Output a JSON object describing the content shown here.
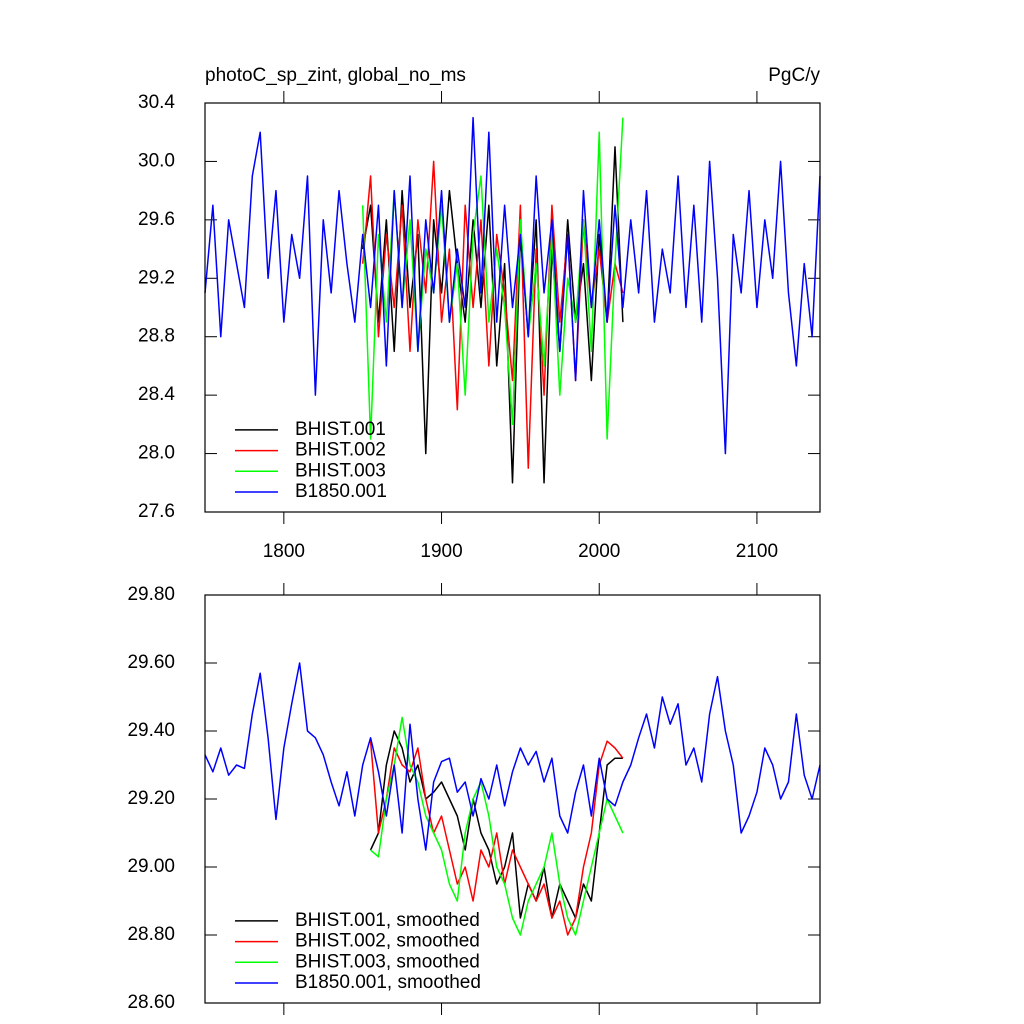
{
  "chart_data": [
    {
      "type": "line",
      "title": "photoC_sp_zint, global_no_ms",
      "units": "PgC/y",
      "xlim": [
        1750,
        2140
      ],
      "xticks": [
        1800,
        1900,
        2000,
        2100
      ],
      "xtick_labels": true,
      "ylim": [
        27.6,
        30.4
      ],
      "yticks": [
        27.6,
        {
          "value": 28,
          "label": "28.0"
        },
        28.4,
        28.8,
        29.2,
        29.6,
        {
          "value": 30,
          "label": "30.0"
        },
        30.4
      ],
      "legend": "lower left",
      "series": [
        {
          "name": "BHIST.001",
          "color": "#000000",
          "x": [
            1850,
            1855,
            1860,
            1865,
            1870,
            1875,
            1880,
            1885,
            1890,
            1895,
            1900,
            1905,
            1910,
            1915,
            1920,
            1925,
            1930,
            1935,
            1940,
            1945,
            1950,
            1955,
            1960,
            1965,
            1970,
            1975,
            1980,
            1985,
            1990,
            1995,
            2000,
            2005,
            2010,
            2015
          ],
          "values": [
            29.4,
            29.7,
            28.9,
            29.6,
            28.7,
            29.8,
            29.0,
            29.5,
            28.0,
            29.6,
            29.1,
            29.8,
            29.3,
            28.9,
            29.6,
            29.0,
            29.7,
            28.6,
            29.3,
            27.8,
            29.5,
            28.8,
            29.6,
            27.8,
            29.4,
            28.7,
            29.6,
            28.9,
            29.3,
            28.5,
            29.5,
            28.9,
            30.1,
            28.9
          ]
        },
        {
          "name": "BHIST.002",
          "color": "#ff0000",
          "x": [
            1850,
            1855,
            1860,
            1865,
            1870,
            1875,
            1880,
            1885,
            1890,
            1895,
            1900,
            1905,
            1910,
            1915,
            1920,
            1925,
            1930,
            1935,
            1940,
            1945,
            1950,
            1955,
            1960,
            1965,
            1970,
            1975,
            1980,
            1985,
            1990,
            1995,
            2000,
            2005,
            2010,
            2015
          ],
          "values": [
            29.3,
            29.9,
            28.8,
            29.5,
            29.0,
            29.7,
            28.7,
            29.6,
            29.1,
            30.0,
            28.9,
            29.4,
            28.3,
            29.7,
            29.0,
            29.6,
            28.6,
            29.5,
            29.1,
            28.5,
            29.7,
            27.9,
            29.4,
            28.4,
            29.7,
            28.9,
            29.5,
            28.5,
            29.6,
            29.0,
            29.4,
            28.9,
            29.3,
            29.1
          ]
        },
        {
          "name": "BHIST.003",
          "color": "#00ff00",
          "x": [
            1850,
            1855,
            1860,
            1865,
            1870,
            1875,
            1880,
            1885,
            1890,
            1895,
            1900,
            1905,
            1910,
            1915,
            1920,
            1925,
            1930,
            1935,
            1940,
            1945,
            1950,
            1955,
            1960,
            1965,
            1970,
            1975,
            1980,
            1985,
            1990,
            1995,
            2000,
            2005,
            2010,
            2015
          ],
          "values": [
            29.7,
            28.1,
            29.5,
            28.9,
            29.8,
            29.0,
            29.6,
            28.7,
            29.4,
            29.1,
            29.7,
            28.9,
            29.3,
            28.4,
            29.5,
            29.9,
            28.9,
            29.4,
            29.0,
            28.2,
            29.6,
            28.8,
            29.3,
            28.6,
            29.5,
            28.4,
            29.2,
            28.9,
            29.6,
            28.7,
            30.2,
            28.1,
            29.3,
            30.3
          ]
        },
        {
          "name": "B1850.001",
          "color": "#0000ff",
          "x": [
            1750,
            1755,
            1760,
            1765,
            1770,
            1775,
            1780,
            1785,
            1790,
            1795,
            1800,
            1805,
            1810,
            1815,
            1820,
            1825,
            1830,
            1835,
            1840,
            1845,
            1850,
            1855,
            1860,
            1865,
            1870,
            1875,
            1880,
            1885,
            1890,
            1895,
            1900,
            1905,
            1910,
            1915,
            1920,
            1925,
            1930,
            1935,
            1940,
            1945,
            1950,
            1955,
            1960,
            1965,
            1970,
            1975,
            1980,
            1985,
            1990,
            1995,
            2000,
            2005,
            2010,
            2015,
            2020,
            2025,
            2030,
            2035,
            2040,
            2045,
            2050,
            2055,
            2060,
            2065,
            2070,
            2075,
            2080,
            2085,
            2090,
            2095,
            2100,
            2105,
            2110,
            2115,
            2120,
            2125,
            2130,
            2135,
            2140
          ],
          "values": [
            29.1,
            29.7,
            28.8,
            29.6,
            29.3,
            29.0,
            29.9,
            30.2,
            29.2,
            29.8,
            28.9,
            29.5,
            29.2,
            29.9,
            28.4,
            29.6,
            29.1,
            29.8,
            29.3,
            28.9,
            29.5,
            29.0,
            29.7,
            28.6,
            29.8,
            29.0,
            29.9,
            28.7,
            29.6,
            29.1,
            29.8,
            28.9,
            29.4,
            29.0,
            30.3,
            29.1,
            30.2,
            28.9,
            29.7,
            29.0,
            29.5,
            28.8,
            29.9,
            29.1,
            29.6,
            28.7,
            29.5,
            28.5,
            29.8,
            29.0,
            29.6,
            28.9,
            29.7,
            29.0,
            29.6,
            29.1,
            29.8,
            28.9,
            29.4,
            29.1,
            29.9,
            29.0,
            29.7,
            28.9,
            30.0,
            29.2,
            28.0,
            29.5,
            29.1,
            29.8,
            29.0,
            29.6,
            29.2,
            30.0,
            29.1,
            28.6,
            29.3,
            28.8,
            29.9
          ]
        }
      ]
    },
    {
      "type": "line",
      "xlim": [
        1750,
        2140
      ],
      "xticks": [
        1800,
        1900,
        2000,
        2100
      ],
      "xtick_labels": false,
      "ylim": [
        28.6,
        29.8
      ],
      "yticks": [
        {
          "value": 28.6,
          "label": "28.60"
        },
        {
          "value": 28.8,
          "label": "28.80"
        },
        {
          "value": 29,
          "label": "29.00"
        },
        {
          "value": 29.2,
          "label": "29.20"
        },
        {
          "value": 29.4,
          "label": "29.40"
        },
        {
          "value": 29.6,
          "label": "29.60"
        },
        {
          "value": 29.8,
          "label": "29.80"
        }
      ],
      "legend": "lower left",
      "series": [
        {
          "name": "BHIST.001, smoothed",
          "color": "#000000",
          "x": [
            1855,
            1860,
            1865,
            1870,
            1875,
            1880,
            1885,
            1890,
            1895,
            1900,
            1905,
            1910,
            1915,
            1920,
            1925,
            1930,
            1935,
            1940,
            1945,
            1950,
            1955,
            1960,
            1965,
            1970,
            1975,
            1980,
            1985,
            1990,
            1995,
            2000,
            2005,
            2010,
            2015
          ],
          "values": [
            29.05,
            29.1,
            29.3,
            29.4,
            29.35,
            29.25,
            29.3,
            29.2,
            29.22,
            29.25,
            29.2,
            29.15,
            29.05,
            29.2,
            29.1,
            29.05,
            28.95,
            29.0,
            29.1,
            28.85,
            28.95,
            28.9,
            29.0,
            28.85,
            28.95,
            28.9,
            28.85,
            28.95,
            28.9,
            29.1,
            29.3,
            29.32,
            29.32
          ]
        },
        {
          "name": "BHIST.002, smoothed",
          "color": "#ff0000",
          "x": [
            1855,
            1860,
            1865,
            1870,
            1875,
            1880,
            1885,
            1890,
            1895,
            1900,
            1905,
            1910,
            1915,
            1920,
            1925,
            1930,
            1935,
            1940,
            1945,
            1950,
            1955,
            1960,
            1965,
            1970,
            1975,
            1980,
            1985,
            1990,
            1995,
            2000,
            2005,
            2010,
            2015
          ],
          "values": [
            29.37,
            29.1,
            29.2,
            29.35,
            29.3,
            29.28,
            29.35,
            29.2,
            29.1,
            29.15,
            29.05,
            28.95,
            29.0,
            28.9,
            29.05,
            29.0,
            29.1,
            28.95,
            29.05,
            29.0,
            28.95,
            28.9,
            28.95,
            28.85,
            28.9,
            28.8,
            28.85,
            29.0,
            29.1,
            29.3,
            29.37,
            29.35,
            29.32
          ]
        },
        {
          "name": "BHIST.003, smoothed",
          "color": "#00ff00",
          "x": [
            1855,
            1860,
            1865,
            1870,
            1875,
            1880,
            1885,
            1890,
            1895,
            1900,
            1905,
            1910,
            1915,
            1920,
            1925,
            1930,
            1935,
            1940,
            1945,
            1950,
            1955,
            1960,
            1965,
            1970,
            1975,
            1980,
            1985,
            1990,
            1995,
            2000,
            2005,
            2010,
            2015
          ],
          "values": [
            29.05,
            29.03,
            29.2,
            29.3,
            29.44,
            29.3,
            29.25,
            29.15,
            29.1,
            29.05,
            28.95,
            28.9,
            29.1,
            29.2,
            29.25,
            29.15,
            29.0,
            28.95,
            28.85,
            28.8,
            28.9,
            28.95,
            29.0,
            29.1,
            28.95,
            28.85,
            28.8,
            28.9,
            29.0,
            29.1,
            29.2,
            29.15,
            29.1
          ]
        },
        {
          "name": "B1850.001, smoothed",
          "color": "#0000ff",
          "x": [
            1750,
            1755,
            1760,
            1765,
            1770,
            1775,
            1780,
            1785,
            1790,
            1795,
            1800,
            1805,
            1810,
            1815,
            1820,
            1825,
            1830,
            1835,
            1840,
            1845,
            1850,
            1855,
            1860,
            1865,
            1870,
            1875,
            1880,
            1885,
            1890,
            1895,
            1900,
            1905,
            1910,
            1915,
            1920,
            1925,
            1930,
            1935,
            1940,
            1945,
            1950,
            1955,
            1960,
            1965,
            1970,
            1975,
            1980,
            1985,
            1990,
            1995,
            2000,
            2005,
            2010,
            2015,
            2020,
            2025,
            2030,
            2035,
            2040,
            2045,
            2050,
            2055,
            2060,
            2065,
            2070,
            2075,
            2080,
            2085,
            2090,
            2095,
            2100,
            2105,
            2110,
            2115,
            2120,
            2125,
            2130,
            2135,
            2140
          ],
          "values": [
            29.33,
            29.28,
            29.35,
            29.27,
            29.3,
            29.29,
            29.45,
            29.57,
            29.38,
            29.14,
            29.35,
            29.48,
            29.6,
            29.4,
            29.38,
            29.33,
            29.25,
            29.18,
            29.28,
            29.15,
            29.3,
            29.38,
            29.28,
            29.15,
            29.3,
            29.1,
            29.42,
            29.2,
            29.05,
            29.25,
            29.31,
            29.32,
            29.22,
            29.25,
            29.15,
            29.26,
            29.2,
            29.3,
            29.18,
            29.28,
            29.35,
            29.3,
            29.34,
            29.25,
            29.32,
            29.15,
            29.1,
            29.22,
            29.3,
            29.15,
            29.32,
            29.2,
            29.18,
            29.25,
            29.3,
            29.38,
            29.45,
            29.35,
            29.5,
            29.42,
            29.48,
            29.3,
            29.35,
            29.25,
            29.45,
            29.56,
            29.4,
            29.3,
            29.1,
            29.15,
            29.22,
            29.35,
            29.3,
            29.2,
            29.25,
            29.45,
            29.27,
            29.2,
            29.3
          ]
        }
      ]
    }
  ]
}
